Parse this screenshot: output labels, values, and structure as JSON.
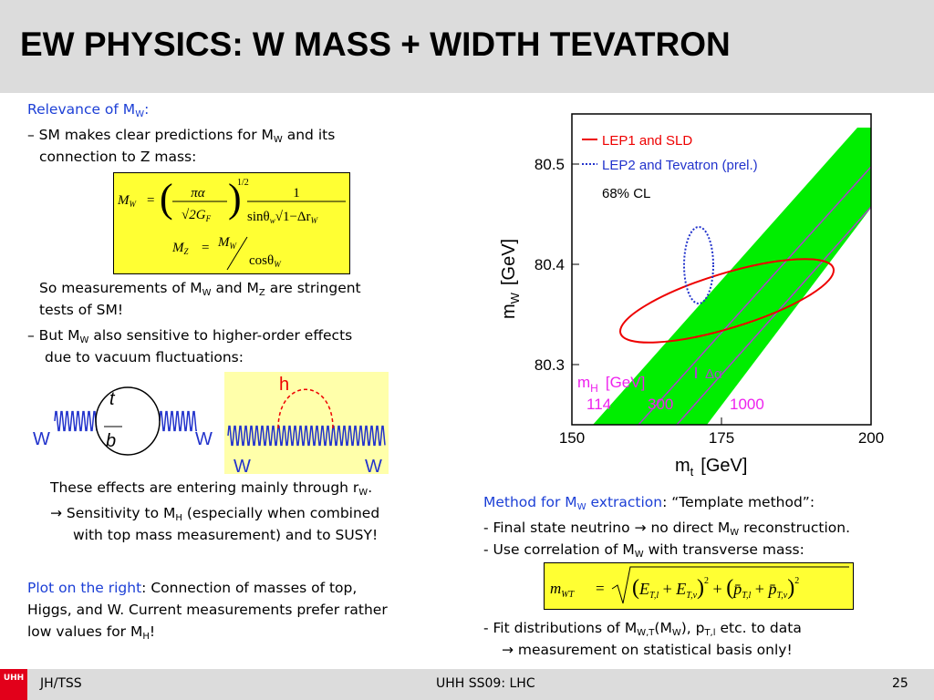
{
  "header": {
    "title": "EW PHYSICS: W MASS + WIDTH TEVATRON"
  },
  "left": {
    "relevance": [
      "Relevance of M",
      "W",
      ":"
    ],
    "sm": [
      "– SM makes clear predictions for M",
      "W",
      " and its",
      "connection to Z mass:"
    ],
    "formula1": [
      "M",
      "W",
      "=",
      "πα",
      "√2G",
      "F",
      "1/2",
      "1",
      "sinθ",
      "w",
      "√1−Δr",
      "W",
      "M",
      "Z",
      "=",
      "M",
      "W",
      "cosθ",
      "W"
    ],
    "so": [
      "So measurements of M",
      "W",
      " and M",
      "Z",
      " are stringent",
      "tests of SM!"
    ],
    "but": [
      "– But M",
      "W",
      " also sensitive to higher-order effects",
      "due to vacuum fluctuations:"
    ],
    "effects": [
      "These effects are entering mainly through r",
      "W",
      "."
    ],
    "sens": [
      "→ Sensitivity to M",
      "H",
      " (especially when combined",
      "with top mass measurement) and to SUSY!"
    ],
    "plot": [
      "Plot on the right",
      ": Connection of masses of top,",
      "Higgs, and W. Current measurements prefer rather",
      "low values for M",
      "H",
      "!"
    ]
  },
  "diagrams": {
    "t": "t",
    "b": "b",
    "w_in": "W",
    "w_out": "W",
    "h": "h",
    "w2_in": "W",
    "w2_out": "W"
  },
  "plot": {
    "xlim": [
      150,
      200
    ],
    "xticks": [
      150,
      175,
      200
    ],
    "ylim": [
      80.24,
      80.55
    ],
    "yticks": [
      80.3,
      80.4,
      80.5
    ],
    "ylabel": [
      "m",
      "W",
      "[GeV]"
    ],
    "xlabel": [
      "m",
      "t",
      "[GeV]"
    ],
    "legend": [
      "LEP1 and SLD",
      "LEP2 and Tevatron (prel.)"
    ],
    "cl": "68% CL",
    "delta_alpha": "Δα",
    "mh_label": [
      "m",
      "H",
      "[GeV]"
    ],
    "mh_values": [
      "114",
      "300",
      "1000"
    ]
  },
  "right": {
    "method": [
      "Method for M",
      "W",
      " extraction",
      ": “Template method”:"
    ],
    "neutrino": [
      "- Final state neutrino → no direct M",
      "W",
      " reconstruction."
    ],
    "use": [
      "- Use correlation of M",
      "W",
      " with transverse mass:"
    ],
    "formula2": [
      "m",
      "WT",
      "=",
      "(",
      "E",
      "T,l",
      " + ",
      "E",
      "T,ν",
      ")",
      "2",
      " + ",
      "(",
      "p̄",
      "T,l",
      " + ",
      "p̄",
      "T,ν",
      ")",
      "2"
    ],
    "fit": [
      "- Fit distributions of M",
      "W,T",
      "(M",
      "W",
      "), p",
      "T,l",
      " etc. to data",
      "→ measurement on statistical basis only!"
    ]
  },
  "footer": {
    "logo": "UHH",
    "left": "JH/TSS",
    "center": "UHH SS09: LHC",
    "page": "25"
  }
}
